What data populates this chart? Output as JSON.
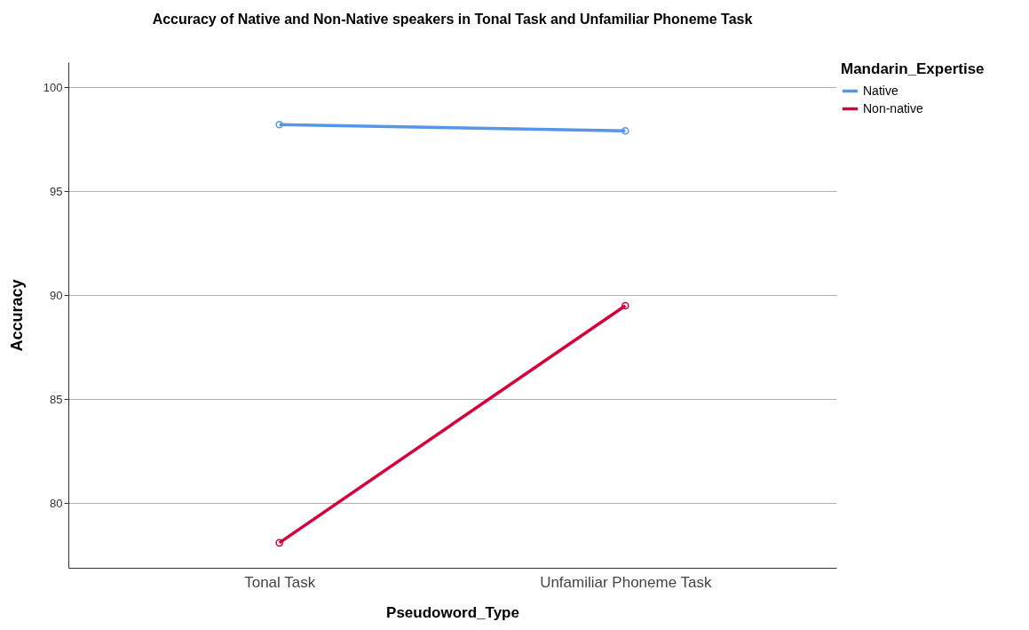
{
  "chart_data": {
    "type": "line",
    "title": "Accuracy of Native and Non-Native speakers in Tonal Task and Unfamiliar Phoneme Task",
    "xlabel": "Pseudoword_Type",
    "ylabel": "Accuracy",
    "legend_title": "Mandarin_Expertise",
    "categories": [
      "Tonal Task",
      "Unfamiliar Phoneme Task"
    ],
    "series": [
      {
        "name": "Native",
        "color": "#5596e6",
        "values": [
          98.2,
          97.9
        ]
      },
      {
        "name": "Non-native",
        "color": "#d6003a",
        "values": [
          78.1,
          89.5
        ]
      }
    ],
    "ylim": [
      76.9,
      101.2
    ],
    "yticks": [
      80,
      85,
      90,
      95,
      100
    ],
    "grid": "y",
    "legend": "top right",
    "marker": "circle",
    "line_style": "solid"
  }
}
